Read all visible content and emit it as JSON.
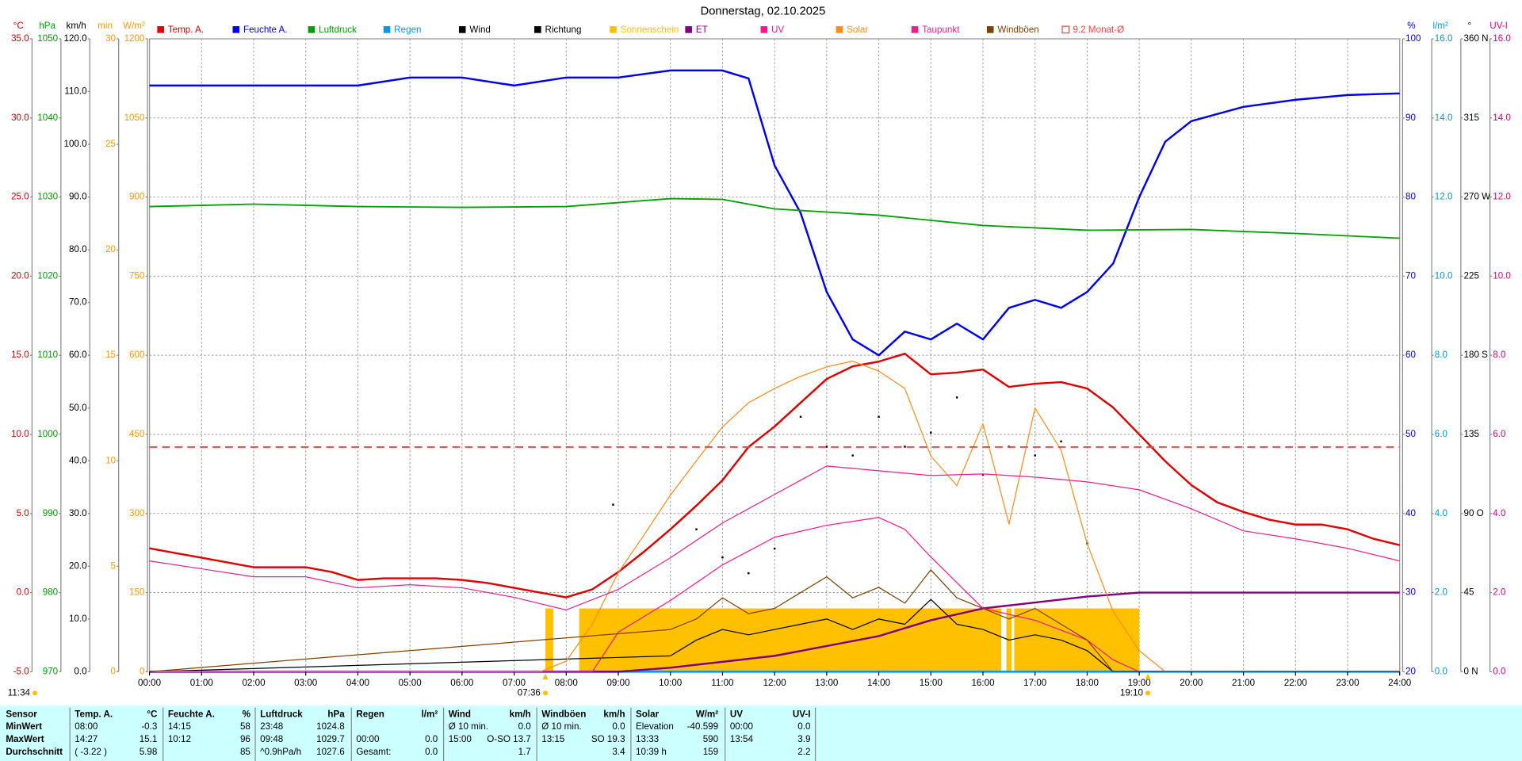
{
  "chart_data": {
    "type": "line",
    "title": "Donnerstag, 02.10.2025",
    "xlim": [
      0,
      24
    ],
    "xticks": [
      {
        "value": 0,
        "label": "00:00"
      },
      {
        "value": 1,
        "label": "01:00"
      },
      {
        "value": 2,
        "label": "02:00"
      },
      {
        "value": 3,
        "label": "03:00"
      },
      {
        "value": 4,
        "label": "04:00"
      },
      {
        "value": 5,
        "label": "05:00"
      },
      {
        "value": 6,
        "label": "06:00"
      },
      {
        "value": 7,
        "label": "07:00"
      },
      {
        "value": 8,
        "label": "08:00"
      },
      {
        "value": 9,
        "label": "09:00"
      },
      {
        "value": 10,
        "label": "10:00"
      },
      {
        "value": 11,
        "label": "11:00"
      },
      {
        "value": 12,
        "label": "12:00"
      },
      {
        "value": 13,
        "label": "13:00"
      },
      {
        "value": 14,
        "label": "14:00"
      },
      {
        "value": 15,
        "label": "15:00"
      },
      {
        "value": 16,
        "label": "16:00"
      },
      {
        "value": 17,
        "label": "17:00"
      },
      {
        "value": 18,
        "label": "18:00"
      },
      {
        "value": 19,
        "label": "19:00"
      },
      {
        "value": 20,
        "label": "20:00"
      },
      {
        "value": 21,
        "label": "21:00"
      },
      {
        "value": 22,
        "label": "22:00"
      },
      {
        "value": 23,
        "label": "23:00"
      },
      {
        "value": 24,
        "label": "24:00"
      }
    ],
    "grid": true,
    "y_axes": [
      {
        "unit": "°C",
        "color": "#e00000",
        "side": "left",
        "grid": true,
        "ylim": [
          -5,
          35
        ],
        "yticks": [
          {
            "value": -5,
            "label": "-5.0"
          },
          {
            "value": 0,
            "label": "0.0"
          },
          {
            "value": 5,
            "label": "5.0"
          },
          {
            "value": 10,
            "label": "10.0"
          },
          {
            "value": 15,
            "label": "15.0"
          },
          {
            "value": 20,
            "label": "20.0"
          },
          {
            "value": 25,
            "label": "25.0"
          },
          {
            "value": 30,
            "label": "30.0"
          },
          {
            "value": 35,
            "label": "35.0"
          }
        ]
      },
      {
        "unit": "hPa",
        "color": "#00a000",
        "side": "left",
        "ylim": [
          970,
          1050
        ],
        "yticks": [
          970,
          980,
          990,
          1000,
          1010,
          1020,
          1030,
          1040,
          1050
        ]
      },
      {
        "unit": "km/h",
        "color": "#000000",
        "side": "left",
        "ylim": [
          0,
          120
        ],
        "yticks": [
          {
            "value": 0,
            "label": "0.0"
          },
          {
            "value": 10,
            "label": "10.0"
          },
          {
            "value": 20,
            "label": "20.0"
          },
          {
            "value": 30,
            "label": "30.0"
          },
          {
            "value": 40,
            "label": "40.0"
          },
          {
            "value": 50,
            "label": "50.0"
          },
          {
            "value": 60,
            "label": "60.0"
          },
          {
            "value": 70,
            "label": "70.0"
          },
          {
            "value": 80,
            "label": "80.0"
          },
          {
            "value": 90,
            "label": "90.0"
          },
          {
            "value": 100,
            "label": "100.0"
          },
          {
            "value": 110,
            "label": "110.0"
          },
          {
            "value": 120,
            "label": "120.0"
          }
        ]
      },
      {
        "unit": "min",
        "color": "#ff9900",
        "side": "left",
        "ylim": [
          0,
          30
        ],
        "yticks": [
          0,
          5,
          10,
          15,
          20,
          25,
          30
        ]
      },
      {
        "unit": "W/m²",
        "color": "#ff9900",
        "side": "left",
        "ylim": [
          0,
          1200
        ],
        "yticks": [
          0,
          150,
          300,
          450,
          600,
          750,
          900,
          1050,
          1200
        ]
      },
      {
        "unit": "%",
        "color": "#0000ee",
        "side": "right",
        "ylim": [
          20,
          100
        ],
        "yticks": [
          20,
          30,
          40,
          50,
          60,
          70,
          80,
          90,
          100
        ]
      },
      {
        "unit": "l/m²",
        "color": "#0099e6",
        "side": "right",
        "ylim": [
          0,
          16
        ],
        "yticks": [
          {
            "value": 0,
            "label": "0.0"
          },
          {
            "value": 2,
            "label": "2.0"
          },
          {
            "value": 4,
            "label": "4.0"
          },
          {
            "value": 6,
            "label": "6.0"
          },
          {
            "value": 8,
            "label": "8.0"
          },
          {
            "value": 10,
            "label": "10.0"
          },
          {
            "value": 12,
            "label": "12.0"
          },
          {
            "value": 14,
            "label": "14.0"
          },
          {
            "value": 16,
            "label": "16.0"
          }
        ]
      },
      {
        "unit": "°",
        "color": "#000000",
        "side": "right",
        "ylim": [
          0,
          360
        ],
        "yticks": [
          {
            "value": 0,
            "label": "0 N"
          },
          {
            "value": 45,
            "label": "45"
          },
          {
            "value": 90,
            "label": "90 O"
          },
          {
            "value": 135,
            "label": "135"
          },
          {
            "value": 180,
            "label": "180 S"
          },
          {
            "value": 225,
            "label": "225"
          },
          {
            "value": 270,
            "label": "270 W"
          },
          {
            "value": 315,
            "label": "315"
          },
          {
            "value": 360,
            "label": "360 N"
          }
        ]
      },
      {
        "unit": "UV-I",
        "color": "#e0007a",
        "side": "right",
        "ylim": [
          0,
          16
        ],
        "yticks": [
          {
            "value": 0,
            "label": "0.0"
          },
          {
            "value": 2,
            "label": "2.0"
          },
          {
            "value": 4,
            "label": "4.0"
          },
          {
            "value": 6,
            "label": "6.0"
          },
          {
            "value": 8,
            "label": "8.0"
          },
          {
            "value": 10,
            "label": "10.0"
          },
          {
            "value": 12,
            "label": "12.0"
          },
          {
            "value": 14,
            "label": "14.0"
          },
          {
            "value": 16,
            "label": "16.0"
          }
        ]
      }
    ],
    "series": [
      {
        "name": "Temp. A.",
        "type": "line",
        "color": "#e00000",
        "axis": "°C",
        "width": 2,
        "x": [
          0,
          0.5,
          1,
          1.5,
          2,
          2.5,
          3,
          3.5,
          4,
          4.5,
          5,
          5.5,
          6,
          6.5,
          7,
          7.5,
          8,
          8.5,
          9,
          9.5,
          10,
          10.5,
          11,
          11.5,
          12,
          12.5,
          13,
          13.5,
          14,
          14.5,
          15,
          15.5,
          16,
          16.5,
          17,
          17.5,
          18,
          18.5,
          19,
          19.5,
          20,
          20.5,
          21,
          21.5,
          22,
          22.5,
          23,
          23.5,
          24
        ],
        "values": [
          2.8,
          2.5,
          2.2,
          1.9,
          1.6,
          1.6,
          1.6,
          1.3,
          0.8,
          0.9,
          0.9,
          0.9,
          0.8,
          0.6,
          0.3,
          0,
          -0.3,
          0.2,
          1.3,
          2.6,
          4.0,
          5.5,
          7.1,
          9.2,
          10.5,
          12.0,
          13.5,
          14.3,
          14.6,
          15.1,
          13.8,
          13.9,
          14.1,
          13.0,
          13.2,
          13.3,
          12.9,
          11.7,
          10.0,
          8.3,
          6.8,
          5.7,
          5.1,
          4.6,
          4.3,
          4.3,
          4.0,
          3.4,
          3.0
        ]
      },
      {
        "name": "Feuchte A.",
        "type": "line",
        "color": "#0000ee",
        "axis": "%",
        "width": 2,
        "x": [
          0,
          1,
          2,
          3,
          4,
          5,
          6,
          7,
          8,
          9,
          10,
          11,
          11.5,
          12,
          12.5,
          13,
          13.5,
          14,
          14.5,
          15,
          15.5,
          16,
          16.5,
          17,
          17.5,
          18,
          18.5,
          19,
          19.5,
          20,
          21,
          22,
          23,
          24
        ],
        "values": [
          94.1,
          94.1,
          94.1,
          94.1,
          94.1,
          95.1,
          95.1,
          94.1,
          95.1,
          95.1,
          96,
          96,
          95,
          84,
          78,
          68,
          62,
          60,
          63,
          62,
          64,
          62,
          66,
          67,
          66,
          68,
          71.6,
          80,
          87,
          89.6,
          91.4,
          92.3,
          92.9,
          93.1
        ]
      },
      {
        "name": "Luftdruck",
        "type": "line",
        "color": "#00a000",
        "axis": "hPa",
        "width": 1.5,
        "x": [
          0,
          2,
          4,
          6,
          8,
          10,
          11,
          12,
          14,
          16,
          18,
          20,
          22,
          24
        ],
        "values": [
          1028.8,
          1029.1,
          1028.8,
          1028.7,
          1028.8,
          1029.8,
          1029.7,
          1028.5,
          1027.7,
          1026.4,
          1025.8,
          1025.9,
          1025.4,
          1024.8
        ]
      },
      {
        "name": "Regen",
        "type": "line",
        "color": "#0099e6",
        "axis": "l/m²",
        "width": 2,
        "x": [
          0,
          24
        ],
        "values": [
          0,
          0
        ]
      },
      {
        "name": "Wind",
        "type": "line",
        "color": "#000000",
        "axis": "km/h",
        "width": 1,
        "x": [
          0,
          10,
          10.5,
          11,
          11.5,
          12,
          12.5,
          13,
          13.5,
          14,
          14.5,
          15,
          15.5,
          16,
          16.5,
          17,
          17.5,
          18,
          18.5,
          19,
          24
        ],
        "values": [
          0,
          3,
          6,
          8,
          7,
          8,
          9,
          10,
          8,
          10,
          9,
          13.7,
          9,
          8,
          6,
          7,
          6,
          4,
          0,
          0,
          0
        ]
      },
      {
        "name": "Richtung",
        "type": "scatter",
        "color": "#000000",
        "axis": "°",
        "x": [
          8.9,
          10.5,
          11.0,
          11.5,
          12.0,
          12.5,
          13.0,
          13.5,
          14.0,
          14.5,
          15.0,
          15.5,
          16.0,
          16.5,
          17.0,
          17.5,
          18.0
        ],
        "values": [
          95,
          81,
          65,
          56,
          70,
          145,
          128,
          123,
          145,
          128,
          136,
          156,
          112,
          128,
          123,
          131,
          73
        ]
      },
      {
        "name": "Sonnenschein",
        "type": "bar",
        "color": "#ffc000",
        "axis": "min",
        "bins": [
          7.6,
          7.75,
          8.25,
          16.35,
          16.45,
          16.55,
          16.6,
          19.0
        ],
        "values": [
          3,
          0,
          3,
          0,
          3,
          0,
          3
        ]
      },
      {
        "name": "ET",
        "type": "line",
        "color": "#800080",
        "axis": "l/m²",
        "width": 2,
        "x": [
          0,
          9,
          10,
          11,
          12,
          13,
          14,
          15,
          16,
          17,
          18,
          19,
          24
        ],
        "values": [
          0,
          0,
          0.1,
          0.25,
          0.4,
          0.65,
          0.9,
          1.3,
          1.6,
          1.75,
          1.9,
          2.0,
          2.0
        ]
      },
      {
        "name": "UV",
        "type": "line",
        "color": "#ff1493",
        "axis": "UV-I",
        "width": 1,
        "x": [
          0,
          8.5,
          9,
          10,
          11,
          12,
          13,
          14,
          14.5,
          15,
          16,
          17,
          18,
          18.5,
          19,
          24
        ],
        "values": [
          0,
          0,
          1.0,
          1.8,
          2.7,
          3.4,
          3.7,
          3.9,
          3.6,
          2.9,
          1.6,
          1.3,
          0.8,
          0.3,
          0,
          0
        ]
      },
      {
        "name": "Solar",
        "type": "line",
        "color": "#ff8c1a",
        "axis": "W/m²",
        "width": 1,
        "x": [
          0,
          7.5,
          8,
          8.5,
          9,
          9.5,
          10,
          10.5,
          11,
          11.5,
          12,
          12.5,
          13,
          13.5,
          14,
          14.5,
          15,
          15.5,
          16,
          16.5,
          17,
          17.5,
          18,
          18.5,
          19,
          19.5,
          24
        ],
        "values": [
          0,
          0,
          20,
          90,
          188,
          260,
          335,
          400,
          464,
          510,
          537,
          560,
          578,
          589,
          570,
          537,
          409,
          353,
          470,
          280,
          500,
          420,
          243,
          114,
          40,
          0,
          0
        ]
      },
      {
        "name": "Taupunkt",
        "type": "line",
        "color": "#e8208e",
        "axis": "°C",
        "width": 1,
        "x": [
          0,
          1,
          2,
          3,
          4,
          5,
          6,
          7,
          8,
          9,
          10,
          11,
          12,
          13,
          14,
          15,
          16,
          17,
          18,
          19,
          20,
          21,
          22,
          23,
          24
        ],
        "values": [
          2.0,
          1.5,
          1.0,
          1.0,
          0.3,
          0.5,
          0.3,
          -0.3,
          -1.1,
          0.2,
          2.2,
          4.4,
          6.2,
          8.0,
          7.7,
          7.4,
          7.5,
          7.3,
          7.0,
          6.5,
          5.3,
          3.9,
          3.4,
          2.8,
          2.0
        ]
      },
      {
        "name": "Windböen",
        "type": "line",
        "color": "#804000",
        "axis": "km/h",
        "width": 1,
        "x": [
          0,
          10,
          10.5,
          11,
          11.5,
          12,
          12.5,
          13,
          13.5,
          14,
          14.5,
          15,
          15.5,
          16,
          16.5,
          17,
          17.5,
          18,
          18.5,
          19,
          24
        ],
        "values": [
          0,
          8,
          10,
          14,
          11,
          12,
          15,
          18,
          14,
          16,
          13,
          19.3,
          14,
          12,
          10,
          12,
          9,
          6,
          0,
          0,
          0
        ]
      },
      {
        "name": "9.2 Monat-Ø",
        "type": "hline",
        "color": "#ff4040",
        "axis": "°C",
        "reference": 9.2
      }
    ],
    "annotations": {
      "current_time": "11:34",
      "sunrise": {
        "value": 7.6,
        "label": "07:36"
      },
      "sunset": {
        "value": 19.1667,
        "label": "19:10"
      }
    }
  },
  "table": {
    "header": [
      "Sensor",
      "Temp. A.",
      "°C",
      "Feuchte A.",
      "%",
      "Luftdruck",
      "hPa",
      "Regen",
      "l/m²",
      "Wind",
      "km/h",
      "Windböen",
      "km/h",
      "Solar",
      "W/m²",
      "UV",
      "UV-I"
    ],
    "rows": [
      [
        "MinWert",
        "08:00",
        "-0.3",
        "14:15",
        "58",
        "23:48",
        "1024.8",
        null,
        null,
        "Ø 10 min.",
        "0.0",
        "Ø 10 min.",
        "0.0",
        "Elevation",
        "-40.599",
        "00:00",
        "0.0"
      ],
      [
        "MaxWert",
        "14:27",
        "15.1",
        "10:12",
        "96",
        "09:48",
        "1029.7",
        "00:00",
        "0.0",
        "15:00",
        "O-SO 13.7",
        "13:15",
        "SO 19.3",
        "13:33",
        "590",
        "13:54",
        "3.9"
      ],
      [
        "Durchschnitt",
        "( -3.22 )",
        "5.98",
        null,
        "85",
        "^0.9hPa/h",
        "1027.6",
        "Gesamt:",
        "0.0",
        null,
        "1.7",
        null,
        "3.4",
        "10:39 h",
        "159",
        null,
        "2.2"
      ]
    ]
  }
}
